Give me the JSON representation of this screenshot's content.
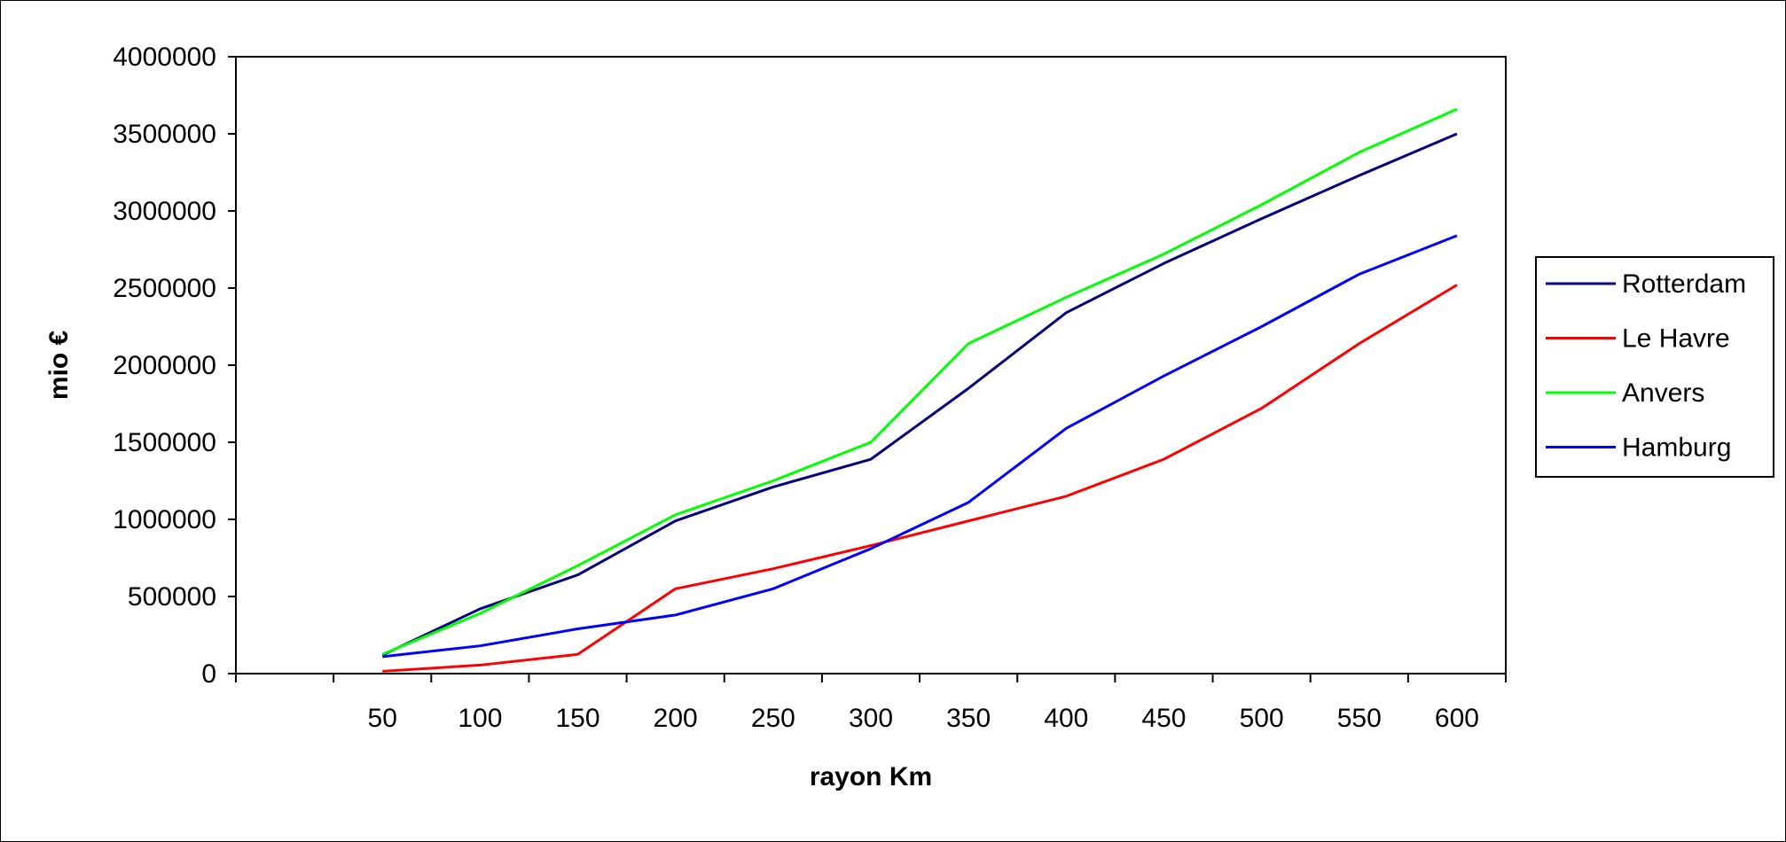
{
  "chart_data": {
    "type": "line",
    "title": "",
    "xlabel": "rayon Km",
    "ylabel": "mio €",
    "categories": [
      "",
      "50",
      "100",
      "150",
      "200",
      "250",
      "300",
      "350",
      "400",
      "450",
      "500",
      "550",
      "600"
    ],
    "ylim": [
      0,
      4000000
    ],
    "y_ticks": [
      "0",
      "500000",
      "1000000",
      "1500000",
      "2000000",
      "2500000",
      "3000000",
      "3500000",
      "4000000"
    ],
    "legend_position": "right",
    "grid": false,
    "series": [
      {
        "name": "Rotterdam",
        "color": "#000080",
        "values": [
          null,
          120000,
          420000,
          640000,
          990000,
          1210000,
          1390000,
          1850000,
          2340000,
          2660000,
          2950000,
          3230000,
          3500000
        ]
      },
      {
        "name": "Le Havre",
        "color": "#ff0000",
        "values": [
          null,
          15000,
          55000,
          125000,
          550000,
          680000,
          830000,
          990000,
          1150000,
          1390000,
          1720000,
          2140000,
          2520000
        ]
      },
      {
        "name": "Anvers",
        "color": "#00ff00",
        "values": [
          null,
          125000,
          390000,
          700000,
          1030000,
          1250000,
          1500000,
          2140000,
          2440000,
          2720000,
          3040000,
          3380000,
          3660000
        ]
      },
      {
        "name": "Hamburg",
        "color": "#0000ff",
        "values": [
          null,
          110000,
          180000,
          290000,
          380000,
          550000,
          810000,
          1110000,
          1590000,
          1930000,
          2250000,
          2590000,
          2840000
        ]
      }
    ]
  }
}
